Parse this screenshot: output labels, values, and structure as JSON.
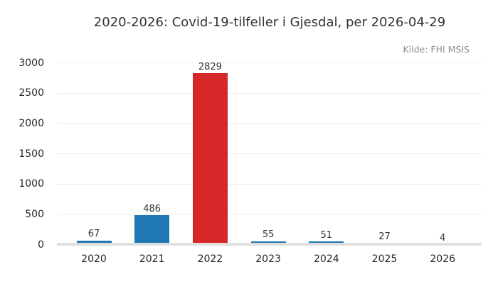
{
  "chart_data": {
    "type": "bar",
    "title": "2020-2026: Covid-19-tilfeller i Gjesdal, per 2026-04-29",
    "source": "Kilde: FHI MSIS",
    "categories": [
      "2020",
      "2021",
      "2022",
      "2023",
      "2024",
      "2025",
      "2026"
    ],
    "values": [
      67,
      486,
      2829,
      55,
      51,
      27,
      4
    ],
    "series": [
      {
        "name": "Covid-19-tilfeller",
        "values": [
          67,
          486,
          2829,
          55,
          51,
          27,
          4
        ]
      }
    ],
    "bar_colors": [
      "#1f77b4",
      "#1f77b4",
      "#d62728",
      "#1f77b4",
      "#1f77b4",
      "#1f77b4",
      "#1f77b4"
    ],
    "highlighted_category": "2022",
    "value_labels_shown": true,
    "xlabel": "",
    "ylabel": "",
    "ylim": [
      0,
      3000
    ],
    "yticks": [
      0,
      500,
      1000,
      1500,
      2000,
      2500,
      3000
    ],
    "grid": true,
    "legend": false,
    "colors": {
      "default_bar": "#1f77b4",
      "highlight_bar": "#d62728",
      "grid": "#ececec",
      "zero_line": "#dfdfdf",
      "title_text": "#333333",
      "tick_text": "#262626",
      "value_text": "#333333",
      "source_text": "#8e8e8e",
      "background": "#ffffff"
    }
  }
}
